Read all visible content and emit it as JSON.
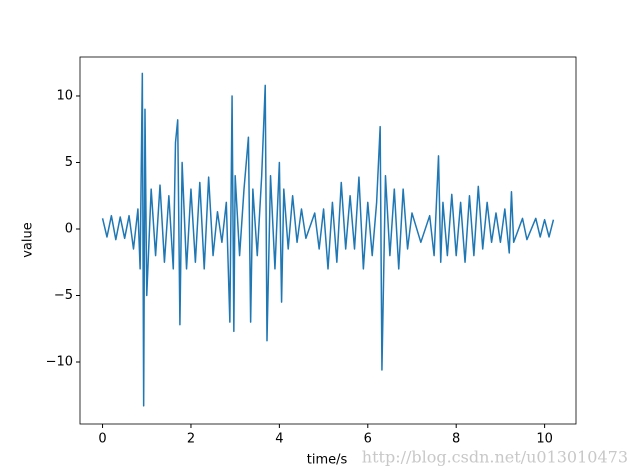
{
  "chart_data": {
    "type": "line",
    "xlabel": "time/s",
    "ylabel": "value",
    "annotation": "http://blog.csdn.net/u013010473",
    "color": "#1f77b4",
    "xlim": [
      -0.51,
      10.71
    ],
    "ylim": [
      -14.66,
      12.93
    ],
    "xticks": [
      0,
      2,
      4,
      6,
      8,
      10
    ],
    "yticks": [
      {
        "value": -10,
        "label": "−10"
      },
      {
        "value": -5,
        "label": "−5"
      },
      0,
      5,
      10
    ],
    "x": [
      0.0,
      0.1,
      0.2,
      0.3,
      0.4,
      0.5,
      0.6,
      0.7,
      0.8,
      0.85,
      0.9,
      0.93,
      0.96,
      1.0,
      1.1,
      1.2,
      1.3,
      1.4,
      1.5,
      1.6,
      1.65,
      1.7,
      1.75,
      1.8,
      1.9,
      2.0,
      2.1,
      2.2,
      2.3,
      2.4,
      2.5,
      2.6,
      2.7,
      2.8,
      2.88,
      2.93,
      2.97,
      3.0,
      3.1,
      3.2,
      3.3,
      3.35,
      3.4,
      3.5,
      3.6,
      3.68,
      3.72,
      3.8,
      3.9,
      4.0,
      4.05,
      4.1,
      4.2,
      4.3,
      4.4,
      4.5,
      4.6,
      4.8,
      4.9,
      5.0,
      5.1,
      5.2,
      5.3,
      5.4,
      5.5,
      5.6,
      5.7,
      5.8,
      5.9,
      6.0,
      6.1,
      6.2,
      6.28,
      6.32,
      6.4,
      6.5,
      6.6,
      6.7,
      6.8,
      6.9,
      7.0,
      7.2,
      7.4,
      7.5,
      7.6,
      7.65,
      7.7,
      7.8,
      7.9,
      8.0,
      8.1,
      8.2,
      8.3,
      8.4,
      8.5,
      8.6,
      8.7,
      8.8,
      8.9,
      9.0,
      9.1,
      9.2,
      9.25,
      9.3,
      9.5,
      9.6,
      9.8,
      9.9,
      10.0,
      10.1,
      10.2
    ],
    "values": [
      0.8,
      -0.6,
      1.0,
      -0.8,
      0.9,
      -0.7,
      1.0,
      -1.5,
      1.5,
      -3,
      11.7,
      -13.3,
      9,
      -5,
      3,
      -2,
      3.3,
      -2.5,
      2.5,
      -3,
      6.5,
      8.2,
      -7.2,
      5,
      -3,
      3.0,
      -2.5,
      3.5,
      -3,
      3.9,
      -2,
      1.3,
      -1,
      2,
      -7,
      10,
      -7.7,
      4,
      -2,
      3,
      6.9,
      -7,
      3,
      -2,
      4,
      10.8,
      -8.4,
      4,
      -3,
      5,
      -5.5,
      3,
      -1.5,
      2.5,
      -1,
      1.5,
      -0.7,
      1.2,
      -1.5,
      1.5,
      -3,
      2,
      -2.5,
      3.5,
      -1.5,
      2.5,
      -1.5,
      3.9,
      -3,
      2,
      -2,
      2,
      7.7,
      -10.6,
      4,
      -2,
      3,
      -3,
      3,
      -1.5,
      1.2,
      -1,
      1,
      -2,
      5.5,
      -2.5,
      2,
      -2,
      2.6,
      -2,
      2,
      -2.5,
      2.5,
      -2,
      3.2,
      -1.5,
      2,
      -1,
      1.2,
      -1,
      1.5,
      -1.8,
      2.8,
      -1,
      0.8,
      -0.8,
      0.8,
      -0.6,
      0.7,
      -0.6,
      0.7
    ]
  }
}
